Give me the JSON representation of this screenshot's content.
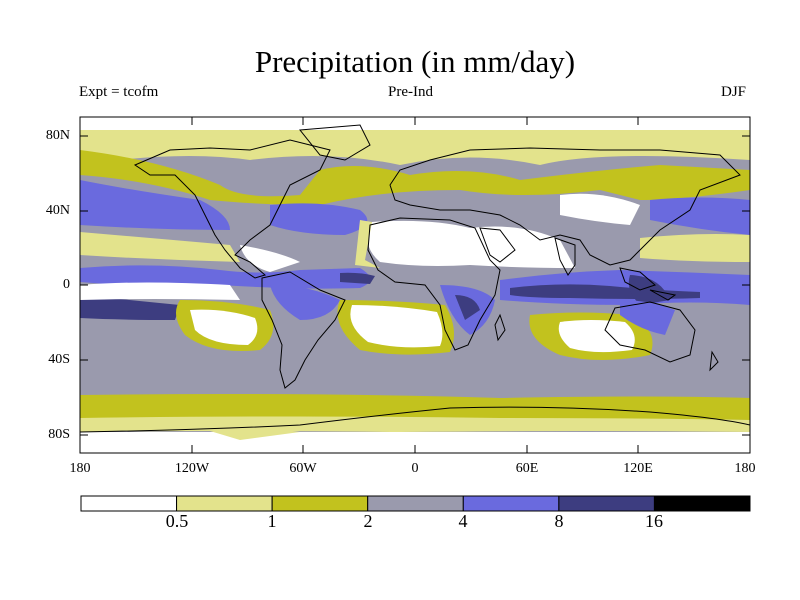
{
  "title": "Precipitation (in mm/day)",
  "subtitle_left": "Expt = tcofm",
  "subtitle_center": "Pre-Ind",
  "subtitle_right": "DJF",
  "lat_ticks": [
    "80N",
    "40N",
    "0",
    "40S",
    "80S"
  ],
  "lon_ticks": [
    "180",
    "120W",
    "60W",
    "0",
    "60E",
    "120E",
    "180"
  ],
  "colorbar": {
    "colors": [
      "#ffffff",
      "#e3e38c",
      "#c2c21e",
      "#9a9aad",
      "#6a6ade",
      "#3d3d80",
      "#000000"
    ],
    "labels": [
      "0.5",
      "1",
      "2",
      "4",
      "8",
      "16"
    ]
  }
}
